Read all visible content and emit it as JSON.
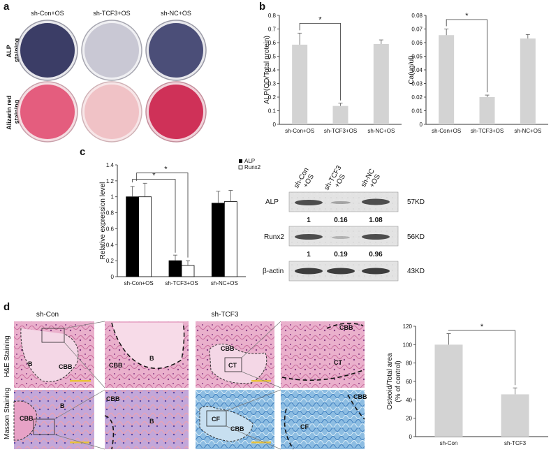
{
  "panels": {
    "a": "a",
    "b": "b",
    "c": "c",
    "d": "d"
  },
  "panel_a": {
    "columns": [
      "sh-Con+OS",
      "sh-TCF3+OS",
      "sh-NC+OS"
    ],
    "rows": [
      "ALP\nstaining",
      "Alizarin red\nstaining"
    ],
    "colors": {
      "alp_con": "#3b3d66",
      "alp_tcf3": "#c9c8d4",
      "alp_nc": "#4b4e78",
      "ar_con": "#e45d7e",
      "ar_tcf3": "#f0c2c6",
      "ar_nc": "#cf3158"
    }
  },
  "panel_c_legend": {
    "alp": "ALP",
    "runx2": "Runx2"
  },
  "blot": {
    "lanes": [
      [
        "sh-Con",
        "+OS"
      ],
      [
        "sh-TCF3",
        "+OS"
      ],
      [
        "sh-NC",
        "+OS"
      ]
    ],
    "rows": [
      {
        "name": "ALP",
        "size": "57KD",
        "values": [
          "1",
          "0.16",
          "1.08"
        ]
      },
      {
        "name": "Runx2",
        "size": "56KD",
        "values": [
          "1",
          "0.19",
          "0.96"
        ]
      },
      {
        "name": "β-actin",
        "size": "43KD",
        "values": []
      }
    ]
  },
  "histology": {
    "col_titles": [
      "sh-Con",
      "sh-TCF3"
    ],
    "row_labels": [
      "H&E Staining",
      "Masson Staining"
    ],
    "labels": {
      "he_con_a": [
        "B",
        "CBB"
      ],
      "he_con_b": [
        "CBB",
        "B"
      ],
      "he_tcf3_a": [
        "CBB",
        "CT"
      ],
      "he_tcf3_b": [
        "CBB",
        "CT"
      ],
      "ms_con_a": [
        "CBB",
        "B"
      ],
      "ms_con_b": [
        "CBB",
        "B"
      ],
      "ms_tcf3_a": [
        "CF",
        "CBB"
      ],
      "ms_tcf3_b": [
        "CBB",
        "CF"
      ]
    },
    "colors": {
      "he": "#e7a6c6",
      "masson_con": "#b7a0d8",
      "masson_tcf3": "#86b6dc"
    }
  },
  "chart_data": [
    {
      "id": "b1",
      "type": "bar",
      "categories": [
        "sh-Con+OS",
        "sh-TCF3+OS",
        "sh-NC+OS"
      ],
      "values": [
        0.585,
        0.135,
        0.59
      ],
      "errors": [
        0.085,
        0.02,
        0.03
      ],
      "ylabel": "ALP(OD/Total protein)",
      "ylim": [
        0,
        0.8
      ],
      "yticks": [
        "0",
        "0.1",
        "0.2",
        "0.3",
        "0.4",
        "0.5",
        "0.6",
        "0.7",
        "0.8"
      ],
      "significance": "*",
      "color": "#d3d3d3"
    },
    {
      "id": "b2",
      "type": "bar",
      "categories": [
        "sh-Con+OS",
        "sh-TCF3+OS",
        "sh-NC+OS"
      ],
      "values": [
        0.0655,
        0.02,
        0.063
      ],
      "errors": [
        0.0045,
        0.0015,
        0.003
      ],
      "ylabel": "Ca(ug/ul)",
      "ylim": [
        0,
        0.08
      ],
      "yticks": [
        "0",
        "0.01",
        "0.02",
        "0.03",
        "0.04",
        "0.05",
        "0.06",
        "0.07",
        "0.08"
      ],
      "significance": "*",
      "color": "#d3d3d3"
    },
    {
      "id": "c",
      "type": "bar",
      "categories": [
        "sh-Con+OS",
        "sh-TCF3+OS",
        "sh-NC+OS"
      ],
      "series": [
        {
          "name": "ALP",
          "values": [
            1.0,
            0.2,
            0.92
          ],
          "errors": [
            0.13,
            0.07,
            0.15
          ],
          "color": "#000000"
        },
        {
          "name": "Runx2",
          "values": [
            1.0,
            0.14,
            0.94
          ],
          "errors": [
            0.17,
            0.06,
            0.14
          ],
          "color": "#ffffff"
        }
      ],
      "ylabel": "Relative expression level",
      "ylim": [
        0,
        1.4
      ],
      "yticks": [
        "0",
        "0.2",
        "0.4",
        "0.6",
        "0.8",
        "1",
        "1.2",
        "1.4"
      ],
      "significance": [
        "*",
        "*"
      ]
    },
    {
      "id": "d",
      "type": "bar",
      "categories": [
        "sh-Con",
        "sh-TCF3"
      ],
      "values": [
        100,
        46
      ],
      "errors": [
        12,
        7
      ],
      "ylabel": "Osteoid/Total area\n(% of control)",
      "ylim": [
        0,
        120
      ],
      "yticks": [
        "0",
        "20",
        "40",
        "60",
        "80",
        "100",
        "120"
      ],
      "significance": "*",
      "color": "#d3d3d3"
    }
  ]
}
